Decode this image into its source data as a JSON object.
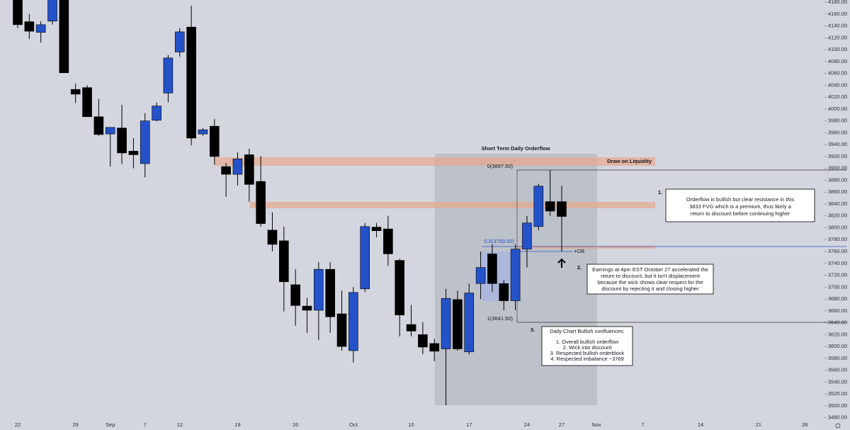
{
  "chart_data": {
    "type": "candlestick",
    "categories": [
      "22",
      null,
      null,
      null,
      null,
      "29",
      null,
      null,
      "Sep",
      null,
      null,
      "7",
      null,
      null,
      "12",
      null,
      null,
      null,
      null,
      "19",
      null,
      null,
      null,
      null,
      "26",
      null,
      null,
      null,
      null,
      "Oct",
      null,
      null,
      null,
      null,
      "10",
      null,
      null,
      null,
      null,
      "17",
      null,
      null,
      null,
      null,
      "24",
      null,
      null,
      "27",
      null,
      null,
      "Nov",
      null,
      null,
      null,
      "7",
      null,
      null,
      null,
      null,
      "14",
      null,
      null,
      null,
      null,
      "21",
      null,
      null,
      null,
      "28",
      null
    ],
    "open": [
      4185,
      4147,
      4129,
      4148,
      4190,
      4033,
      4036,
      3987,
      3958,
      3968,
      3929,
      3908,
      3981,
      4027,
      4096,
      4138,
      3958,
      3971,
      3903,
      3890,
      3923,
      3878,
      3796,
      3778,
      3704,
      3668,
      3661,
      3730,
      3655,
      3593,
      3697,
      3801,
      3798,
      3745,
      3637,
      3620,
      3605,
      3596,
      3679,
      3591,
      3706,
      3756,
      3706,
      3677,
      3764,
      3802,
      3844,
      3844,
      null,
      null,
      null,
      null,
      null,
      null,
      null,
      null,
      null,
      null,
      null,
      null,
      null,
      null,
      null,
      null,
      null,
      null,
      null,
      null,
      null,
      null
    ],
    "high": [
      4195,
      4160,
      4148,
      4195,
      4200,
      4043,
      4040,
      4017,
      3969,
      4007,
      3951,
      3993,
      4011,
      4091,
      4136,
      4174,
      3968,
      3983,
      3909,
      3927,
      3933,
      3921,
      3826,
      3802,
      3730,
      3682,
      3742,
      3742,
      3694,
      3700,
      3808,
      3808,
      3820,
      3748,
      3670,
      3641,
      3613,
      3697,
      3694,
      3706,
      3760,
      3772,
      3712,
      3772,
      3820,
      3874,
      3897.5,
      3871,
      null,
      null,
      null,
      null,
      null,
      null,
      null,
      null,
      null,
      null,
      null,
      null,
      null,
      null,
      null,
      null,
      null,
      null,
      null,
      null,
      null,
      null
    ],
    "low": [
      4136,
      4118,
      4112,
      4142,
      4061,
      4010,
      3987,
      3955,
      3903,
      3907,
      3900,
      3885,
      3979,
      4011,
      4088,
      3939,
      3955,
      3906,
      3852,
      3871,
      3844,
      3802,
      3760,
      3659,
      3635,
      3623,
      3611,
      3623,
      3593,
      3573,
      3692,
      3784,
      3736,
      3617,
      3617,
      3587,
      3575,
      3501,
      3593,
      3587,
      3680,
      3692,
      3661,
      3661,
      3733,
      3796,
      3820,
      3760,
      null,
      null,
      null,
      null,
      null,
      null,
      null,
      null,
      null,
      null,
      null,
      null,
      null,
      null,
      null,
      null,
      null,
      null,
      null,
      null,
      null,
      null
    ],
    "close": [
      4142,
      4131,
      4142,
      4185,
      4061,
      4025,
      3987,
      3957,
      3969,
      3926,
      3923,
      3980,
      4005,
      4086,
      4130,
      3951,
      3965,
      3920,
      3890,
      3916,
      3873,
      3807,
      3772,
      3709,
      3669,
      3661,
      3730,
      3650,
      3600,
      3691,
      3802,
      3795,
      3756,
      3653,
      3626,
      3599,
      3592,
      3681,
      3596,
      3690,
      3733,
      3706,
      3677,
      3764,
      3808,
      3870,
      3828,
      3819,
      null,
      null,
      null,
      null,
      null,
      null,
      null,
      null,
      null,
      null,
      null,
      null,
      null,
      null,
      null,
      null,
      null,
      null,
      null,
      null,
      null,
      null
    ],
    "up_color": "#2452c8",
    "down_color": "#000000",
    "grid": false,
    "ylim": [
      3479.6,
      4183.6
    ],
    "yticks": [
      {
        "value": 4180,
        "label": "4180.00"
      },
      {
        "value": 4160,
        "label": "4160.00"
      },
      {
        "value": 4140,
        "label": "4140.00"
      },
      {
        "value": 4120,
        "label": "4120.00"
      },
      {
        "value": 4100,
        "label": "4100.00"
      },
      {
        "value": 4080,
        "label": "4080.00"
      },
      {
        "value": 4060,
        "label": "4060.00"
      },
      {
        "value": 4040,
        "label": "4040.00"
      },
      {
        "value": 4020,
        "label": "4020.00"
      },
      {
        "value": 4000,
        "label": "4000.00"
      },
      {
        "value": 3980,
        "label": "3980.00"
      },
      {
        "value": 3960,
        "label": "3960.00"
      },
      {
        "value": 3940,
        "label": "3940.00"
      },
      {
        "value": 3920,
        "label": "3920.00"
      },
      {
        "value": 3900,
        "label": "3900.00"
      },
      {
        "value": 3880,
        "label": "3880.00"
      },
      {
        "value": 3860,
        "label": "3860.00"
      },
      {
        "value": 3840,
        "label": "3840.00"
      },
      {
        "value": 3820,
        "label": "3820.00"
      },
      {
        "value": 3800,
        "label": "3800.00"
      },
      {
        "value": 3780,
        "label": "3780.00"
      },
      {
        "value": 3760,
        "label": "3760.00"
      },
      {
        "value": 3740,
        "label": "3740.00"
      },
      {
        "value": 3720,
        "label": "3720.00"
      },
      {
        "value": 3700,
        "label": "3700.00"
      },
      {
        "value": 3680,
        "label": "3680.00"
      },
      {
        "value": 3660,
        "label": "3660.00"
      },
      {
        "value": 3640,
        "label": "3640.00"
      },
      {
        "value": 3620,
        "label": "3620.00"
      },
      {
        "value": 3600,
        "label": "3600.00"
      },
      {
        "value": 3580,
        "label": "3580.00"
      },
      {
        "value": 3560,
        "label": "3560.00"
      },
      {
        "value": 3540,
        "label": "3540.00"
      },
      {
        "value": 3520,
        "label": "3520.00"
      },
      {
        "value": 3500,
        "label": "3500.00"
      },
      {
        "value": 3480,
        "label": "3480.00"
      }
    ],
    "annotations": {
      "box_title": "Short Term Daily Orderflow",
      "draw_on_liquidity": "Draw on Liquidity",
      "fib_0": "0(3897.50)",
      "fib_half": "0.5(3769.50)",
      "fib_1": "1(3641.50)",
      "ob": "+OB",
      "notes": [
        {
          "number": "1.",
          "lines": [
            "Orderflow is bullish but clear resistance in this",
            "3833 FVG which is a premium, thus likely a",
            "return to discount before continuing higher"
          ]
        },
        {
          "number": "2.",
          "lines": [
            "Earnings at 4pm EST October 27 accelerated the",
            "return to discount, but it isn't displacement",
            "because the wick shows clear respect for the",
            "discount by rejecting it and closing higher"
          ]
        },
        {
          "number": "3.",
          "lines": [
            "Daily Chart Bullish confluences:",
            "1. Overall bullish orderflow",
            "2. Wick into discount",
            "3. Respected bullish orderblock",
            "4. Respected imbalance ~3769"
          ]
        }
      ]
    }
  }
}
